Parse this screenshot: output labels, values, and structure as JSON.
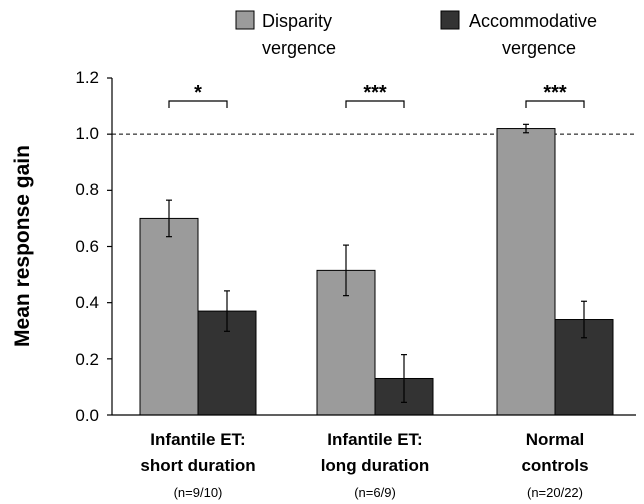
{
  "chart_data": {
    "type": "bar",
    "ylabel": "Mean response gain",
    "xlabel": "",
    "ylim": [
      0,
      1.2
    ],
    "yticks": [
      "0.0",
      "0.2",
      "0.4",
      "0.6",
      "0.8",
      "1.0",
      "1.2"
    ],
    "reference_line": 1.0,
    "legend_position": "top-right",
    "categories": [
      {
        "line1": "Infantile ET:",
        "line2": "short duration",
        "n": "(n=9/10)"
      },
      {
        "line1": "Infantile ET:",
        "line2": "long duration",
        "n": "(n=6/9)"
      },
      {
        "line1": "Normal",
        "line2": "controls",
        "n": "(n=20/22)"
      }
    ],
    "series": [
      {
        "name_line1": "Disparity",
        "name_line2": "vergence",
        "color": "#9b9b9b",
        "values": [
          0.7,
          0.515,
          1.02
        ],
        "errors": [
          0.065,
          0.09,
          0.015
        ]
      },
      {
        "name_line1": "Accommodative",
        "name_line2": "vergence",
        "color": "#333333",
        "values": [
          0.37,
          0.13,
          0.34
        ],
        "errors": [
          0.072,
          0.085,
          0.065
        ]
      }
    ],
    "significance": [
      "*",
      "***",
      "***"
    ]
  }
}
